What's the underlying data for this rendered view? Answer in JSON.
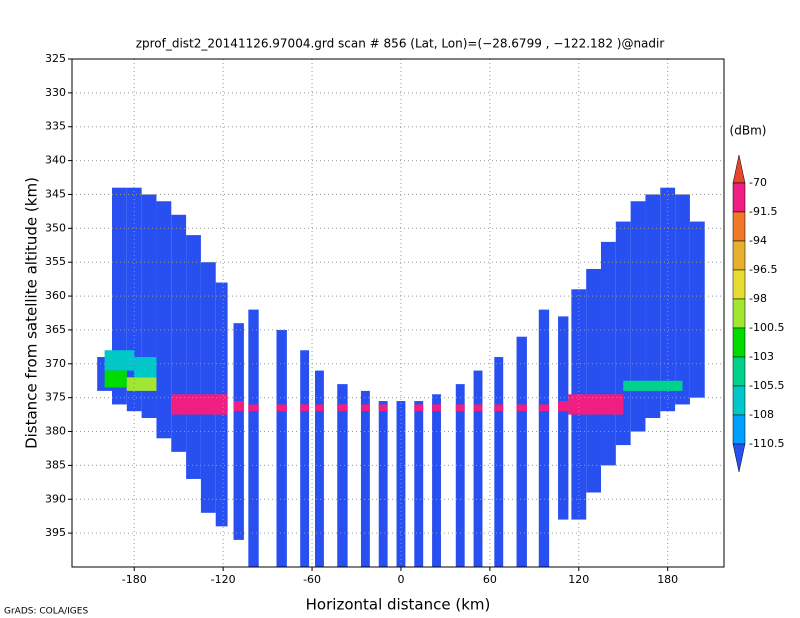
{
  "chart_data": {
    "type": "echo-section",
    "title": "zprof_dist2_20141126.97004.grd  scan # 856  (Lat, Lon)=(−28.6799 , −122.182 )@nadir",
    "x_label": "Horizontal distance (km)",
    "y_label": "Distance from satellite altitude (km)",
    "colorbar_unit": "(dBm)",
    "footer": "GrADS: COLA/IGES",
    "xlim": [
      -222,
      218
    ],
    "xticks": [
      -180,
      -120,
      -60,
      0,
      60,
      120,
      180
    ],
    "ylim": [
      325,
      400
    ],
    "yticks": [
      325,
      330,
      335,
      340,
      345,
      350,
      355,
      360,
      365,
      370,
      375,
      380,
      385,
      390,
      395
    ],
    "y_reversed": true,
    "grid": true,
    "levels": [
      -70,
      -91.5,
      -94,
      -96.5,
      -98,
      -100.5,
      -103,
      -105.5,
      -108,
      -110.5
    ],
    "colors": [
      "#e8452d",
      "#f01e82",
      "#f07828",
      "#e6af2d",
      "#e6dc32",
      "#a0e632",
      "#00dc00",
      "#00d28c",
      "#00c8c8",
      "#00a0ff",
      "#2850f0"
    ],
    "echoes": [
      {
        "x0": -205,
        "x1": -195,
        "top": 369,
        "bottom": 374,
        "dbm": -115
      },
      {
        "x0": -195,
        "x1": -185,
        "top": 344,
        "bottom": 376,
        "dbm": -115
      },
      {
        "x0": -185,
        "x1": -175,
        "top": 344,
        "bottom": 377,
        "dbm": -115
      },
      {
        "x0": -175,
        "x1": -165,
        "top": 345,
        "bottom": 378,
        "dbm": -115
      },
      {
        "x0": -165,
        "x1": -155,
        "top": 346,
        "bottom": 381,
        "dbm": -115
      },
      {
        "x0": -155,
        "x1": -145,
        "top": 348,
        "bottom": 383,
        "dbm": -115
      },
      {
        "x0": -145,
        "x1": -135,
        "top": 351,
        "bottom": 387,
        "dbm": -115
      },
      {
        "x0": -135,
        "x1": -125,
        "top": 355,
        "bottom": 392,
        "dbm": -115
      },
      {
        "x0": -125,
        "x1": -117,
        "top": 358,
        "bottom": 394,
        "dbm": -115
      },
      {
        "x0": -113,
        "x1": -106,
        "top": 364,
        "bottom": 396,
        "dbm": -115
      },
      {
        "x0": -103,
        "x1": -96,
        "top": 362,
        "bottom": 400,
        "dbm": -115
      },
      {
        "x0": -84,
        "x1": -77,
        "top": 365,
        "bottom": 400,
        "dbm": -115
      },
      {
        "x0": -68,
        "x1": -62,
        "top": 368,
        "bottom": 400,
        "dbm": -115
      },
      {
        "x0": -58,
        "x1": -52,
        "top": 371,
        "bottom": 400,
        "dbm": -115
      },
      {
        "x0": -43,
        "x1": -36,
        "top": 373,
        "bottom": 400,
        "dbm": -115
      },
      {
        "x0": -27,
        "x1": -21,
        "top": 374,
        "bottom": 400,
        "dbm": -115
      },
      {
        "x0": -15,
        "x1": -9,
        "top": 375.5,
        "bottom": 400,
        "dbm": -115
      },
      {
        "x0": -3,
        "x1": 3,
        "top": 375.5,
        "bottom": 400,
        "dbm": -115
      },
      {
        "x0": 9,
        "x1": 15,
        "top": 375.5,
        "bottom": 400,
        "dbm": -115
      },
      {
        "x0": 21,
        "x1": 27,
        "top": 374.5,
        "bottom": 400,
        "dbm": -115
      },
      {
        "x0": 37,
        "x1": 43,
        "top": 373,
        "bottom": 400,
        "dbm": -115
      },
      {
        "x0": 49,
        "x1": 55,
        "top": 371,
        "bottom": 400,
        "dbm": -115
      },
      {
        "x0": 63,
        "x1": 69,
        "top": 369,
        "bottom": 400,
        "dbm": -115
      },
      {
        "x0": 78,
        "x1": 85,
        "top": 366,
        "bottom": 400,
        "dbm": -115
      },
      {
        "x0": 93,
        "x1": 100,
        "top": 362,
        "bottom": 400,
        "dbm": -115
      },
      {
        "x0": 106,
        "x1": 113,
        "top": 363,
        "bottom": 393,
        "dbm": -115
      },
      {
        "x0": 115,
        "x1": 125,
        "top": 359,
        "bottom": 393,
        "dbm": -115
      },
      {
        "x0": 125,
        "x1": 135,
        "top": 356,
        "bottom": 389,
        "dbm": -115
      },
      {
        "x0": 135,
        "x1": 145,
        "top": 352,
        "bottom": 385,
        "dbm": -115
      },
      {
        "x0": 145,
        "x1": 155,
        "top": 349,
        "bottom": 382,
        "dbm": -115
      },
      {
        "x0": 155,
        "x1": 165,
        "top": 346,
        "bottom": 380,
        "dbm": -115
      },
      {
        "x0": 165,
        "x1": 175,
        "top": 345,
        "bottom": 378,
        "dbm": -115
      },
      {
        "x0": 175,
        "x1": 185,
        "top": 344,
        "bottom": 377,
        "dbm": -115
      },
      {
        "x0": 185,
        "x1": 195,
        "top": 345,
        "bottom": 376,
        "dbm": -115
      },
      {
        "x0": 195,
        "x1": 205,
        "top": 349,
        "bottom": 375,
        "dbm": -115
      },
      {
        "x0": -200,
        "x1": -180,
        "top": 368,
        "bottom": 371,
        "dbm": -107
      },
      {
        "x0": -180,
        "x1": -165,
        "top": 369,
        "bottom": 372,
        "dbm": -107
      },
      {
        "x0": -200,
        "x1": -185,
        "top": 371,
        "bottom": 373.5,
        "dbm": -101
      },
      {
        "x0": -185,
        "x1": -165,
        "top": 372,
        "bottom": 374,
        "dbm": -99
      },
      {
        "x0": 150,
        "x1": 190,
        "top": 372.5,
        "bottom": 374,
        "dbm": -104
      },
      {
        "x0": -155,
        "x1": -117,
        "top": 374.5,
        "bottom": 377.5,
        "dbm": -80
      },
      {
        "x0": -113,
        "x1": -106,
        "top": 375.5,
        "bottom": 377,
        "dbm": -80
      },
      {
        "x0": -103,
        "x1": -96,
        "top": 376,
        "bottom": 377,
        "dbm": -80
      },
      {
        "x0": -84,
        "x1": -77,
        "top": 376,
        "bottom": 377,
        "dbm": -80
      },
      {
        "x0": -68,
        "x1": -62,
        "top": 376,
        "bottom": 377,
        "dbm": -80
      },
      {
        "x0": -58,
        "x1": -52,
        "top": 376,
        "bottom": 377,
        "dbm": -80
      },
      {
        "x0": -43,
        "x1": -36,
        "top": 376,
        "bottom": 377,
        "dbm": -80
      },
      {
        "x0": -27,
        "x1": -21,
        "top": 376,
        "bottom": 377,
        "dbm": -80
      },
      {
        "x0": -15,
        "x1": -9,
        "top": 376,
        "bottom": 377,
        "dbm": -80
      },
      {
        "x0": 9,
        "x1": 15,
        "top": 376,
        "bottom": 377,
        "dbm": -80
      },
      {
        "x0": 21,
        "x1": 27,
        "top": 376,
        "bottom": 377,
        "dbm": -80
      },
      {
        "x0": 37,
        "x1": 43,
        "top": 376,
        "bottom": 377,
        "dbm": -80
      },
      {
        "x0": 49,
        "x1": 55,
        "top": 376,
        "bottom": 377,
        "dbm": -80
      },
      {
        "x0": 63,
        "x1": 69,
        "top": 376,
        "bottom": 377,
        "dbm": -80
      },
      {
        "x0": 78,
        "x1": 85,
        "top": 376,
        "bottom": 377,
        "dbm": -80
      },
      {
        "x0": 93,
        "x1": 100,
        "top": 376,
        "bottom": 377,
        "dbm": -80
      },
      {
        "x0": 106,
        "x1": 113,
        "top": 375.5,
        "bottom": 377,
        "dbm": -80
      },
      {
        "x0": 113,
        "x1": 150,
        "top": 374.5,
        "bottom": 377.5,
        "dbm": -80
      }
    ]
  }
}
